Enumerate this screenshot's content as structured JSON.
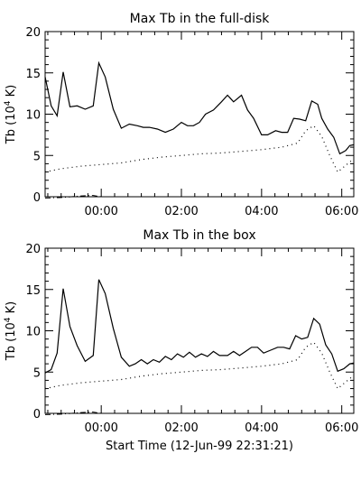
{
  "chart_data": [
    {
      "type": "line",
      "title": "Max Tb in the full-disk",
      "ylabel_main": "Tb (10",
      "ylabel_exp": "4",
      "ylabel_tail": " K)",
      "xlabel": "",
      "xlim": [
        -1.4,
        6.3
      ],
      "ylim": [
        0,
        20
      ],
      "yticks": [
        0,
        5,
        10,
        15,
        20
      ],
      "xticks": [
        {
          "v": 0,
          "label": "00:00"
        },
        {
          "v": 2,
          "label": "02:00"
        },
        {
          "v": 4,
          "label": "04:00"
        },
        {
          "v": 6,
          "label": "06:00"
        }
      ],
      "series": [
        {
          "style": "solid",
          "points": [
            [
              -1.4,
              14.5
            ],
            [
              -1.25,
              11
            ],
            [
              -1.1,
              9.8
            ],
            [
              -0.95,
              15.1
            ],
            [
              -0.78,
              10.9
            ],
            [
              -0.6,
              11
            ],
            [
              -0.4,
              10.6
            ],
            [
              -0.2,
              11
            ],
            [
              -0.06,
              16.2
            ],
            [
              0.1,
              14.5
            ],
            [
              0.3,
              10.6
            ],
            [
              0.5,
              8.3
            ],
            [
              0.7,
              8.8
            ],
            [
              0.9,
              8.6
            ],
            [
              1.05,
              8.4
            ],
            [
              1.2,
              8.4
            ],
            [
              1.4,
              8.2
            ],
            [
              1.6,
              7.8
            ],
            [
              1.8,
              8.2
            ],
            [
              2.0,
              9.0
            ],
            [
              2.15,
              8.6
            ],
            [
              2.3,
              8.6
            ],
            [
              2.45,
              9
            ],
            [
              2.6,
              10
            ],
            [
              2.8,
              10.5
            ],
            [
              3.0,
              11.5
            ],
            [
              3.15,
              12.3
            ],
            [
              3.3,
              11.5
            ],
            [
              3.5,
              12.3
            ],
            [
              3.65,
              10.5
            ],
            [
              3.8,
              9.5
            ],
            [
              4.0,
              7.5
            ],
            [
              4.15,
              7.5
            ],
            [
              4.35,
              8
            ],
            [
              4.5,
              7.8
            ],
            [
              4.65,
              7.8
            ],
            [
              4.8,
              9.5
            ],
            [
              4.95,
              9.4
            ],
            [
              5.1,
              9.2
            ],
            [
              5.25,
              11.6
            ],
            [
              5.4,
              11.2
            ],
            [
              5.5,
              9.5
            ],
            [
              5.65,
              8.2
            ],
            [
              5.8,
              7.2
            ],
            [
              5.95,
              5.2
            ],
            [
              6.1,
              5.6
            ],
            [
              6.2,
              6.2
            ],
            [
              6.3,
              6.3
            ]
          ]
        },
        {
          "style": "dotted",
          "points": [
            [
              -1.4,
              3.0
            ],
            [
              -1.0,
              3.4
            ],
            [
              -0.5,
              3.7
            ],
            [
              0,
              3.9
            ],
            [
              0.5,
              4.1
            ],
            [
              1.0,
              4.5
            ],
            [
              1.5,
              4.8
            ],
            [
              2.0,
              5.0
            ],
            [
              2.5,
              5.2
            ],
            [
              3.0,
              5.3
            ],
            [
              3.5,
              5.5
            ],
            [
              4.0,
              5.7
            ],
            [
              4.5,
              6.0
            ],
            [
              4.9,
              6.5
            ],
            [
              5.1,
              8.0
            ],
            [
              5.3,
              8.6
            ],
            [
              5.5,
              7.3
            ],
            [
              5.7,
              5.0
            ],
            [
              5.9,
              3.0
            ],
            [
              6.1,
              3.8
            ],
            [
              6.3,
              4.6
            ]
          ]
        },
        {
          "style": "dashdot",
          "points": [
            [
              -1.4,
              -0.15
            ],
            [
              -1.0,
              -0.1
            ],
            [
              -0.5,
              0.1
            ],
            [
              -0.2,
              0.15
            ],
            [
              0,
              0.0
            ],
            [
              0.5,
              0.0
            ],
            [
              1.0,
              0.0
            ],
            [
              6.3,
              0.0
            ]
          ]
        }
      ]
    },
    {
      "type": "line",
      "title": "Max Tb in the box",
      "ylabel_main": "Tb (10",
      "ylabel_exp": "4",
      "ylabel_tail": " K)",
      "xlabel": "Start Time (12-Jun-99 22:31:21)",
      "xlim": [
        -1.4,
        6.3
      ],
      "ylim": [
        0,
        20
      ],
      "yticks": [
        0,
        5,
        10,
        15,
        20
      ],
      "xticks": [
        {
          "v": 0,
          "label": "00:00"
        },
        {
          "v": 2,
          "label": "02:00"
        },
        {
          "v": 4,
          "label": "04:00"
        },
        {
          "v": 6,
          "label": "06:00"
        }
      ],
      "series": [
        {
          "style": "solid",
          "points": [
            [
              -1.4,
              4.9
            ],
            [
              -1.25,
              5.3
            ],
            [
              -1.1,
              7.3
            ],
            [
              -0.95,
              15.1
            ],
            [
              -0.78,
              10.5
            ],
            [
              -0.6,
              8.2
            ],
            [
              -0.4,
              6.3
            ],
            [
              -0.2,
              7.0
            ],
            [
              -0.06,
              16.2
            ],
            [
              0.1,
              14.5
            ],
            [
              0.3,
              10.3
            ],
            [
              0.5,
              6.8
            ],
            [
              0.7,
              5.7
            ],
            [
              0.85,
              6.0
            ],
            [
              1.0,
              6.5
            ],
            [
              1.15,
              6.0
            ],
            [
              1.3,
              6.5
            ],
            [
              1.45,
              6.2
            ],
            [
              1.6,
              6.9
            ],
            [
              1.75,
              6.5
            ],
            [
              1.9,
              7.2
            ],
            [
              2.05,
              6.8
            ],
            [
              2.2,
              7.4
            ],
            [
              2.35,
              6.8
            ],
            [
              2.5,
              7.2
            ],
            [
              2.65,
              6.9
            ],
            [
              2.8,
              7.5
            ],
            [
              2.95,
              7.0
            ],
            [
              3.15,
              7.0
            ],
            [
              3.3,
              7.5
            ],
            [
              3.45,
              7.0
            ],
            [
              3.6,
              7.5
            ],
            [
              3.75,
              8.0
            ],
            [
              3.9,
              8.0
            ],
            [
              4.05,
              7.3
            ],
            [
              4.2,
              7.6
            ],
            [
              4.4,
              8.0
            ],
            [
              4.55,
              8.0
            ],
            [
              4.7,
              7.8
            ],
            [
              4.85,
              9.4
            ],
            [
              5.0,
              9.0
            ],
            [
              5.15,
              9.2
            ],
            [
              5.3,
              11.5
            ],
            [
              5.45,
              10.8
            ],
            [
              5.6,
              8.3
            ],
            [
              5.75,
              7.2
            ],
            [
              5.9,
              5.1
            ],
            [
              6.05,
              5.4
            ],
            [
              6.2,
              6.0
            ],
            [
              6.3,
              6.1
            ]
          ]
        },
        {
          "style": "dotted",
          "points": [
            [
              -1.4,
              3.0
            ],
            [
              -1.0,
              3.4
            ],
            [
              -0.5,
              3.7
            ],
            [
              0,
              3.9
            ],
            [
              0.5,
              4.1
            ],
            [
              1.0,
              4.5
            ],
            [
              1.5,
              4.8
            ],
            [
              2.0,
              5.0
            ],
            [
              2.5,
              5.2
            ],
            [
              3.0,
              5.3
            ],
            [
              3.5,
              5.5
            ],
            [
              4.0,
              5.7
            ],
            [
              4.5,
              6.0
            ],
            [
              4.9,
              6.5
            ],
            [
              5.1,
              8.0
            ],
            [
              5.3,
              8.6
            ],
            [
              5.5,
              7.3
            ],
            [
              5.7,
              5.0
            ],
            [
              5.9,
              3.0
            ],
            [
              6.1,
              3.8
            ],
            [
              6.3,
              4.6
            ]
          ]
        },
        {
          "style": "dashdot",
          "points": [
            [
              -1.4,
              -0.15
            ],
            [
              -1.0,
              -0.1
            ],
            [
              -0.5,
              0.1
            ],
            [
              -0.2,
              0.15
            ],
            [
              0,
              0.0
            ],
            [
              0.5,
              0.0
            ],
            [
              1.0,
              0.0
            ],
            [
              6.3,
              0.0
            ]
          ]
        }
      ]
    }
  ]
}
